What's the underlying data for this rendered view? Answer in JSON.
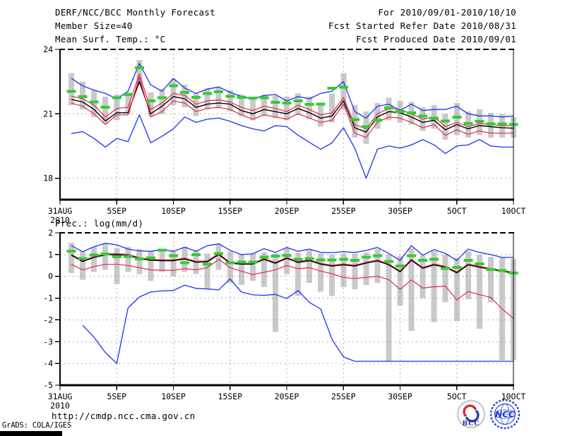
{
  "header": {
    "title": "DERF/NCC/BCC Monthly Forecast",
    "member_size": "Member Size=40",
    "temp_title": "Mean Surf. Temp.: °C",
    "for_range": "For 2010/09/01-2010/10/10",
    "refer_date": "Fcst Started Refer Date 2010/08/31",
    "produced_date": "Fcst Produced Date 2010/09/01"
  },
  "footer": {
    "url": "http://cmdp.ncc.cma.gov.cn",
    "credit": "GrADS: COLA/IGES",
    "logos": [
      {
        "name": "bcc-logo",
        "label": "BCC"
      },
      {
        "name": "ncc-logo",
        "label": "NCC"
      }
    ]
  },
  "colors": {
    "envelope_blue": "#1e32f0",
    "std_red": "#e6284b",
    "mean_black": "#000000",
    "marker_green": "#33cc33",
    "spread_gray": "#c9c9c9",
    "grid_gray": "#9a9a9a"
  },
  "chart_data": [
    {
      "type": "line",
      "title": "Mean Surf. Temp.: °C",
      "xlabel": "",
      "ylabel": "°C",
      "x_start_date": "2010-09-01",
      "x_tick_labels": [
        "31AUG",
        "5SEP",
        "10SEP",
        "15SEP",
        "20SEP",
        "25SEP",
        "30SEP",
        "5OCT",
        "10OCT"
      ],
      "x_tick_positions": [
        0,
        5,
        10,
        15,
        20,
        25,
        30,
        35,
        40
      ],
      "x_year_label": "2010",
      "xlim": [
        0,
        40
      ],
      "ylim": [
        17,
        24
      ],
      "yticks": [
        18,
        21,
        24
      ],
      "grid_yticks": [
        18,
        21
      ],
      "grid": true,
      "series": [
        {
          "name": "ensemble-max",
          "color": "#1e32f0",
          "width": 1.3,
          "values": [
            22.65,
            22.3,
            22.1,
            21.95,
            21.7,
            22.05,
            23.35,
            22.35,
            22.05,
            22.65,
            22.2,
            21.95,
            22.15,
            22.25,
            22.0,
            21.8,
            21.7,
            21.85,
            21.9,
            21.6,
            21.8,
            21.7,
            21.95,
            22.05,
            22.5,
            21.1,
            20.8,
            21.35,
            21.45,
            21.15,
            21.45,
            21.15,
            21.2,
            21.2,
            21.35,
            21.0,
            20.9,
            20.9,
            20.85,
            20.9
          ]
        },
        {
          "name": "mean-plus-std",
          "color": "#e6284b",
          "width": 1.2,
          "values": [
            21.82,
            21.7,
            21.4,
            20.85,
            21.25,
            21.3,
            22.85,
            21.2,
            21.5,
            21.95,
            21.85,
            21.45,
            21.6,
            21.65,
            21.55,
            21.3,
            21.15,
            21.35,
            21.25,
            21.1,
            21.4,
            21.2,
            20.95,
            21.05,
            21.75,
            20.5,
            20.3,
            21.0,
            21.25,
            21.2,
            21.0,
            20.75,
            20.85,
            20.4,
            20.6,
            20.4,
            20.55,
            20.5,
            20.45,
            20.45
          ]
        },
        {
          "name": "ensemble-mean",
          "color": "#000000",
          "width": 1.4,
          "values": [
            21.67,
            21.55,
            21.2,
            20.67,
            21.05,
            21.05,
            22.5,
            21.0,
            21.35,
            21.8,
            21.7,
            21.3,
            21.45,
            21.5,
            21.45,
            21.15,
            21.0,
            21.2,
            21.1,
            21.0,
            21.25,
            21.05,
            20.8,
            20.9,
            21.6,
            20.35,
            20.15,
            20.85,
            21.1,
            21.05,
            20.85,
            20.6,
            20.7,
            20.25,
            20.5,
            20.3,
            20.45,
            20.4,
            20.35,
            20.33
          ]
        },
        {
          "name": "mean-minus-std",
          "color": "#e6284b",
          "width": 1.2,
          "values": [
            21.5,
            21.35,
            21.0,
            20.5,
            20.95,
            20.95,
            22.7,
            20.85,
            21.1,
            21.6,
            21.5,
            21.1,
            21.25,
            21.3,
            21.2,
            20.95,
            20.75,
            20.95,
            20.85,
            20.75,
            21.0,
            20.8,
            20.6,
            20.7,
            21.45,
            20.1,
            19.9,
            20.6,
            20.85,
            20.8,
            20.6,
            20.35,
            20.5,
            20.0,
            20.25,
            20.05,
            20.2,
            20.1,
            20.1,
            20.1
          ]
        },
        {
          "name": "ensemble-min",
          "color": "#1e32f0",
          "width": 1.3,
          "values": [
            20.08,
            20.17,
            19.85,
            19.45,
            19.85,
            19.7,
            20.95,
            19.65,
            19.95,
            20.3,
            20.85,
            20.6,
            20.75,
            20.8,
            20.65,
            20.45,
            20.3,
            20.2,
            20.45,
            20.4,
            20.0,
            19.67,
            19.35,
            19.65,
            20.35,
            19.4,
            18.0,
            19.35,
            19.5,
            19.4,
            19.55,
            19.8,
            19.55,
            19.15,
            19.5,
            19.55,
            19.8,
            19.5,
            19.45,
            19.45
          ]
        }
      ],
      "markers": {
        "name": "daily-reference-dash",
        "color": "#33cc33",
        "values": [
          22.05,
          21.8,
          21.55,
          21.3,
          21.75,
          21.9,
          23.15,
          21.6,
          21.75,
          22.3,
          22.0,
          21.77,
          21.95,
          22.03,
          21.82,
          21.77,
          21.73,
          21.75,
          21.53,
          21.5,
          21.6,
          21.43,
          21.45,
          22.2,
          22.25,
          20.73,
          20.4,
          20.7,
          21.27,
          21.1,
          21.05,
          20.9,
          20.8,
          20.67,
          20.85,
          20.55,
          20.65,
          20.54,
          20.54,
          20.5
        ]
      },
      "bars": {
        "name": "member-spread",
        "color": "#c9c9c9",
        "ranges": [
          [
            21.4,
            22.9
          ],
          [
            21.2,
            22.5
          ],
          [
            20.85,
            22.1
          ],
          [
            20.55,
            21.8
          ],
          [
            20.7,
            21.9
          ],
          [
            21.0,
            22.0
          ],
          [
            22.3,
            23.5
          ],
          [
            20.9,
            22.0
          ],
          [
            21.0,
            22.15
          ],
          [
            21.4,
            22.6
          ],
          [
            21.3,
            22.35
          ],
          [
            20.9,
            21.95
          ],
          [
            21.2,
            22.2
          ],
          [
            21.25,
            22.25
          ],
          [
            21.1,
            22.1
          ],
          [
            20.9,
            21.9
          ],
          [
            20.7,
            21.7
          ],
          [
            20.9,
            21.9
          ],
          [
            20.8,
            21.85
          ],
          [
            20.7,
            21.8
          ],
          [
            20.95,
            21.95
          ],
          [
            20.75,
            21.8
          ],
          [
            20.4,
            21.5
          ],
          [
            20.6,
            21.95
          ],
          [
            21.2,
            22.9
          ],
          [
            19.9,
            21.4
          ],
          [
            19.6,
            21.1
          ],
          [
            20.3,
            21.5
          ],
          [
            20.7,
            21.75
          ],
          [
            20.6,
            21.6
          ],
          [
            20.5,
            21.55
          ],
          [
            20.2,
            21.3
          ],
          [
            20.3,
            21.4
          ],
          [
            19.8,
            21.0
          ],
          [
            20.0,
            21.5
          ],
          [
            19.9,
            21.1
          ],
          [
            20.0,
            21.2
          ],
          [
            19.9,
            21.05
          ],
          [
            19.9,
            21.0
          ],
          [
            19.9,
            20.85
          ]
        ]
      }
    },
    {
      "type": "line",
      "title": "Prec.: log(mm/d)",
      "xlabel": "",
      "ylabel": "log(mm/d)",
      "x_start_date": "2010-09-01",
      "x_tick_labels": [
        "31AUG",
        "5SEP",
        "10SEP",
        "15SEP",
        "20SEP",
        "25SEP",
        "30SEP",
        "5OCT",
        "10OCT"
      ],
      "x_tick_positions": [
        0,
        5,
        10,
        15,
        20,
        25,
        30,
        35,
        40
      ],
      "x_year_label": "2010",
      "xlim": [
        0,
        40
      ],
      "ylim": [
        -5,
        2
      ],
      "yticks": [
        -5,
        -4,
        -3,
        -2,
        -1,
        0,
        1,
        2
      ],
      "grid_yticks": [
        -4,
        -3,
        -2,
        -1,
        0,
        1
      ],
      "grid": true,
      "series": [
        {
          "name": "ensemble-max",
          "color": "#1e32f0",
          "width": 1.3,
          "values": [
            1.41,
            1.13,
            1.36,
            1.52,
            1.45,
            1.25,
            1.17,
            1.15,
            1.23,
            1.15,
            1.34,
            1.15,
            1.41,
            1.49,
            1.2,
            1.0,
            1.04,
            1.27,
            1.1,
            1.33,
            1.15,
            1.25,
            1.1,
            1.09,
            1.13,
            1.1,
            1.19,
            1.33,
            1.05,
            0.73,
            1.41,
            0.97,
            1.23,
            1.05,
            0.73,
            1.25,
            1.1,
            1.0,
            0.87,
            0.87
          ]
        },
        {
          "name": "mean-plus-std",
          "color": "#e6284b",
          "width": 1.2,
          "values": [
            1.01,
            0.72,
            0.91,
            1.03,
            1.04,
            1.01,
            0.86,
            0.78,
            0.76,
            0.76,
            0.84,
            0.69,
            0.71,
            1.04,
            0.64,
            0.6,
            0.6,
            0.82,
            0.64,
            0.87,
            0.68,
            0.76,
            0.6,
            0.51,
            0.57,
            0.51,
            0.65,
            0.75,
            0.57,
            0.25,
            0.78,
            0.41,
            0.57,
            0.46,
            0.2,
            0.57,
            0.46,
            0.36,
            0.27,
            0.19
          ]
        },
        {
          "name": "ensemble-mean",
          "color": "#000000",
          "width": 1.4,
          "values": [
            0.97,
            0.68,
            0.87,
            0.99,
            1.0,
            0.97,
            0.82,
            0.74,
            0.72,
            0.72,
            0.8,
            0.65,
            0.67,
            1.0,
            0.6,
            0.56,
            0.56,
            0.78,
            0.6,
            0.83,
            0.64,
            0.72,
            0.56,
            0.47,
            0.53,
            0.47,
            0.61,
            0.71,
            0.53,
            0.21,
            0.74,
            0.37,
            0.53,
            0.42,
            0.16,
            0.53,
            0.42,
            0.32,
            0.23,
            0.15
          ]
        },
        {
          "name": "mean-minus-std",
          "color": "#e6284b",
          "width": 1.2,
          "values": [
            0.55,
            0.3,
            0.45,
            0.55,
            0.55,
            0.5,
            0.4,
            0.3,
            0.28,
            0.28,
            0.35,
            0.3,
            0.4,
            0.78,
            0.4,
            0.24,
            0.08,
            0.19,
            0.3,
            0.5,
            0.35,
            0.4,
            0.24,
            0.12,
            -0.05,
            -0.1,
            -0.05,
            0.0,
            -0.15,
            -0.6,
            -0.16,
            -0.54,
            -0.48,
            -0.45,
            -1.08,
            -0.7,
            -0.84,
            -0.97,
            -1.5,
            -1.93
          ]
        },
        {
          "name": "ensemble-min",
          "color": "#1e32f0",
          "width": 1.3,
          "values": [
            null,
            -2.25,
            -2.8,
            -3.5,
            -4.0,
            -1.45,
            -0.95,
            -0.72,
            -0.67,
            -0.65,
            -0.4,
            -0.55,
            -0.58,
            -0.62,
            -0.12,
            -0.72,
            -0.85,
            -0.87,
            -0.83,
            -1.02,
            -0.65,
            -1.2,
            -1.5,
            -2.9,
            -3.7,
            -3.9,
            -3.9,
            -3.9,
            -3.9,
            -3.9,
            -3.9,
            -3.9,
            -3.9,
            -3.9,
            -3.9,
            -3.9,
            -3.9,
            -3.9,
            -3.9,
            -3.9
          ]
        }
      ],
      "markers": {
        "name": "daily-reference-dash",
        "color": "#33cc33",
        "values": [
          1.15,
          0.82,
          0.98,
          1.02,
          0.9,
          0.92,
          0.8,
          0.85,
          1.2,
          0.95,
          0.63,
          1.0,
          0.56,
          1.05,
          0.62,
          0.65,
          0.65,
          0.88,
          0.93,
          0.97,
          0.78,
          0.81,
          0.75,
          0.76,
          0.79,
          0.74,
          0.89,
          0.95,
          0.68,
          0.47,
          0.95,
          0.74,
          0.79,
          0.37,
          0.42,
          0.74,
          0.58,
          0.32,
          0.26,
          0.16
        ]
      },
      "bars": {
        "name": "member-spread",
        "color": "#c9c9c9",
        "ranges": [
          [
            0.15,
            1.55
          ],
          [
            -0.15,
            1.15
          ],
          [
            0.2,
            1.35
          ],
          [
            0.3,
            1.5
          ],
          [
            -0.35,
            1.3
          ],
          [
            0.2,
            1.35
          ],
          [
            0.1,
            1.25
          ],
          [
            -0.2,
            1.15
          ],
          [
            0.2,
            1.25
          ],
          [
            0.0,
            1.15
          ],
          [
            0.2,
            1.35
          ],
          [
            0.1,
            1.2
          ],
          [
            -0.6,
            1.05
          ],
          [
            0.3,
            1.5
          ],
          [
            -0.3,
            1.15
          ],
          [
            -0.4,
            1.0
          ],
          [
            -0.2,
            1.05
          ],
          [
            -0.5,
            1.1
          ],
          [
            -2.55,
            1.05
          ],
          [
            0.1,
            1.3
          ],
          [
            -0.9,
            1.1
          ],
          [
            -0.3,
            1.2
          ],
          [
            -0.7,
            1.05
          ],
          [
            -0.9,
            1.0
          ],
          [
            -0.5,
            1.05
          ],
          [
            -0.6,
            1.05
          ],
          [
            -0.4,
            1.1
          ],
          [
            -0.3,
            1.25
          ],
          [
            -3.9,
            1.0
          ],
          [
            -1.35,
            0.95
          ],
          [
            -2.5,
            1.3
          ],
          [
            -1.0,
            0.95
          ],
          [
            -2.1,
            1.15
          ],
          [
            -1.2,
            1.0
          ],
          [
            -2.05,
            0.85
          ],
          [
            -1.05,
            1.15
          ],
          [
            -2.4,
            1.0
          ],
          [
            -1.2,
            0.9
          ],
          [
            -3.85,
            0.85
          ],
          [
            -3.85,
            0.8
          ]
        ]
      }
    }
  ]
}
